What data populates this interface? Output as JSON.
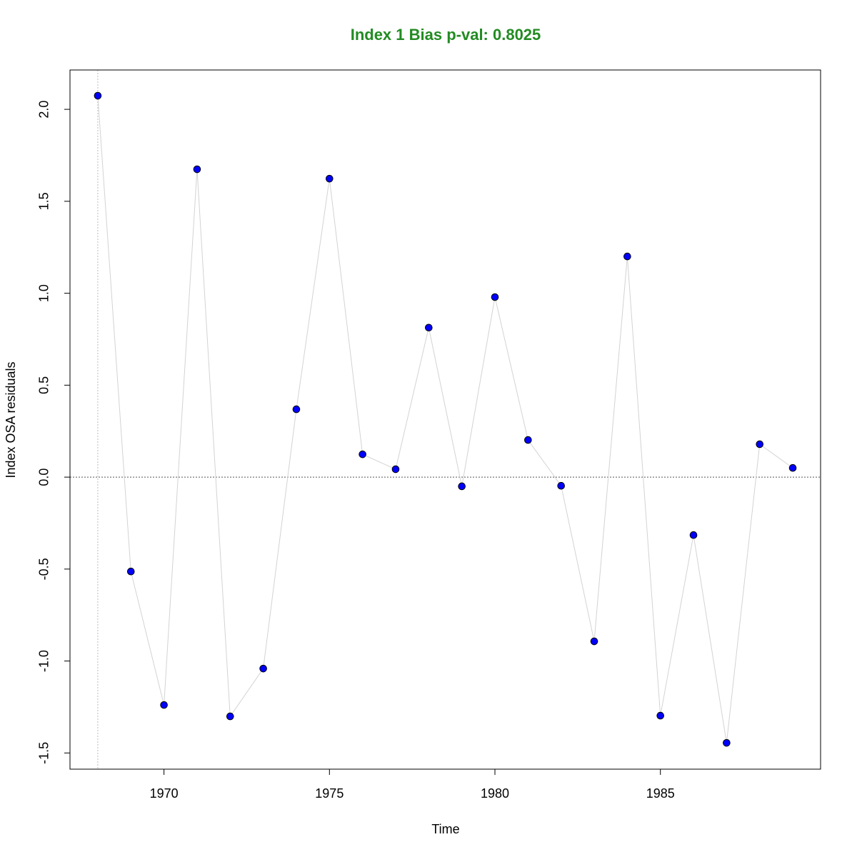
{
  "chart_data": {
    "type": "line",
    "title": "Index 1 Bias p-val: 0.8025",
    "title_color": "#228b22",
    "x_label": "Time",
    "y_label": "Index OSA residuals",
    "x": [
      1968,
      1969,
      1970,
      1971,
      1972,
      1973,
      1974,
      1975,
      1976,
      1977,
      1978,
      1979,
      1980,
      1981,
      1982,
      1983,
      1984,
      1985,
      1986,
      1987,
      1988,
      1989
    ],
    "series": [
      {
        "color": "#0000ff",
        "line_color": "#d3d3d3",
        "values": [
          2.074,
          -0.513,
          -1.239,
          1.674,
          -1.301,
          -1.041,
          0.369,
          1.623,
          0.124,
          0.043,
          0.813,
          -0.05,
          0.979,
          0.202,
          -0.047,
          -0.893,
          1.2,
          -1.297,
          -0.315,
          -1.445,
          0.179,
          0.05
        ]
      }
    ],
    "xlim": [
      1967.16,
      1989.84
    ],
    "xticks": [
      1970,
      1975,
      1980,
      1985
    ],
    "ylim": [
      -1.588,
      2.214
    ],
    "yticks": [
      {
        "value": -1.5,
        "label": "-1.5"
      },
      {
        "value": -1,
        "label": "-1.0"
      },
      -0.5,
      {
        "value": 0,
        "label": "0.0"
      },
      0.5,
      {
        "value": 1,
        "label": "1.0"
      },
      1.5,
      {
        "value": 2,
        "label": "2.0"
      }
    ],
    "hline": 0,
    "vline": 1968
  }
}
